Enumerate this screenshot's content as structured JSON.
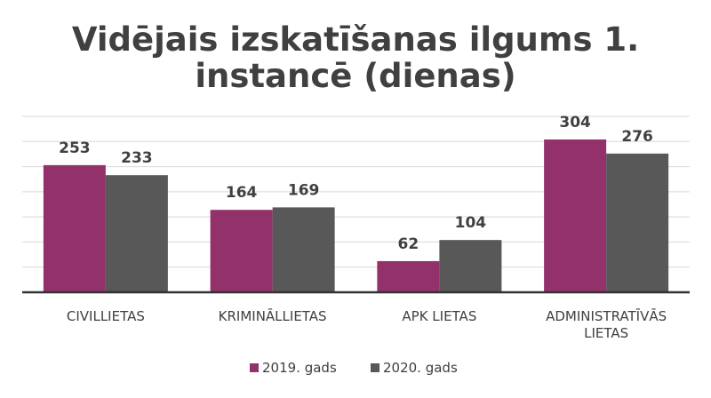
{
  "chart_data": {
    "type": "bar",
    "title_lines": [
      "Vidējais izskatīšanas ilgums 1.",
      "instancē (dienas)"
    ],
    "categories": [
      [
        "CIVILLIETAS"
      ],
      [
        "KRIMINĀLLIETAS"
      ],
      [
        "APK LIETAS"
      ],
      [
        "ADMINISTRATĪVĀS",
        "LIETAS"
      ]
    ],
    "series": [
      {
        "name": "2019. gads",
        "color": "#93316b",
        "values": [
          253,
          164,
          62,
          304
        ]
      },
      {
        "name": "2020. gads",
        "color": "#585858",
        "values": [
          233,
          169,
          104,
          276
        ]
      }
    ],
    "ylim": [
      0,
      350
    ],
    "grid": true,
    "legend_position": "bottom"
  }
}
